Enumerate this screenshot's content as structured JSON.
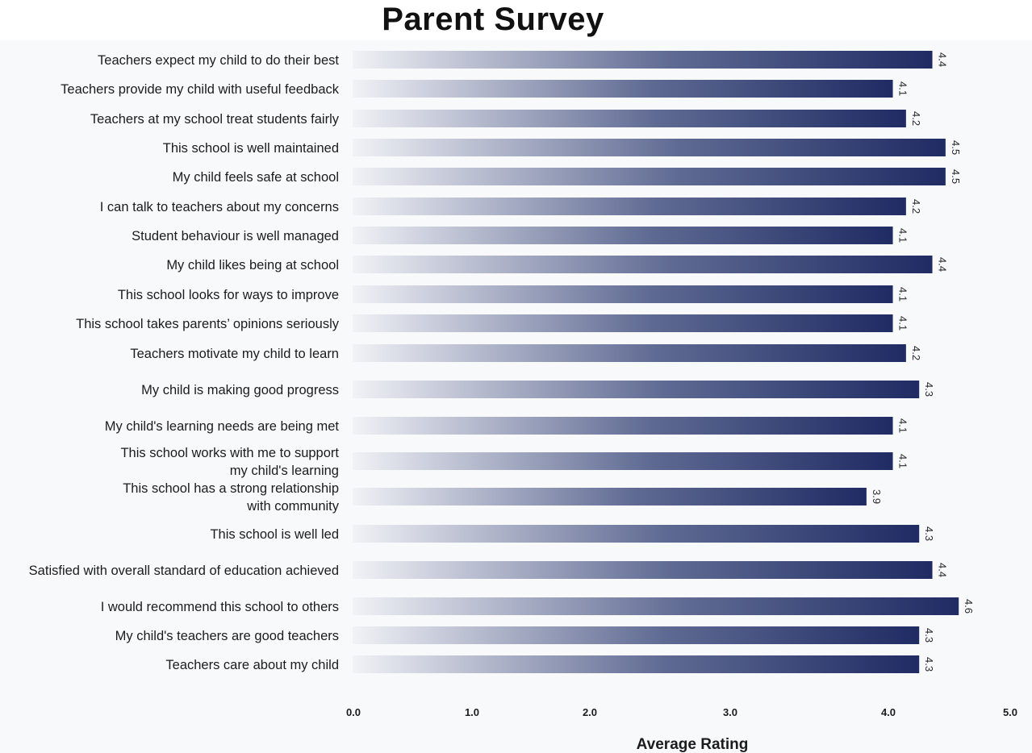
{
  "chart_data": {
    "type": "bar",
    "orientation": "horizontal",
    "title": "Parent Survey",
    "xlabel": "Average Rating",
    "ylabel": "",
    "xlim": [
      0,
      5
    ],
    "xticks": [
      "0.0",
      "1.0",
      "2.0",
      "3.0",
      "4.0",
      "5.0"
    ],
    "grid": false,
    "colors": {
      "bar_start": "#f1f2f6",
      "bar_end": "#1f2b63"
    },
    "categories": [
      "Teachers expect my child to do their best",
      "Teachers provide my child with useful feedback",
      "Teachers at my school treat students fairly",
      "This school is well maintained",
      "My child feels safe at school",
      "I can talk to teachers about my concerns",
      "Student behaviour is well managed",
      "My child likes being at school",
      "This school looks for ways to improve",
      "This school takes parents’ opinions seriously",
      "Teachers motivate my child to learn",
      "My child is making good progress",
      "My child's learning needs are being met",
      "This school works with me to support\nmy child's learning",
      "This school has a strong relationship\nwith community",
      "This school is well led",
      "Satisfied with overall standard of education achieved",
      "I would recommend this school to others",
      "My child's teachers are good teachers",
      "Teachers care about my child"
    ],
    "values": [
      4.4,
      4.1,
      4.2,
      4.5,
      4.5,
      4.2,
      4.1,
      4.4,
      4.1,
      4.1,
      4.2,
      4.3,
      4.1,
      4.1,
      3.9,
      4.3,
      4.4,
      4.6,
      4.3,
      4.3
    ],
    "value_labels": [
      "4.4",
      "4.1",
      "4.2",
      "4.5",
      "4.5",
      "4.2",
      "4.1",
      "4.4",
      "4.1",
      "4.1",
      "4.2",
      "4.3",
      "4.1",
      "4.1",
      "3.9",
      "4.3",
      "4.4",
      "4.6",
      "4.3",
      "4.3"
    ]
  }
}
